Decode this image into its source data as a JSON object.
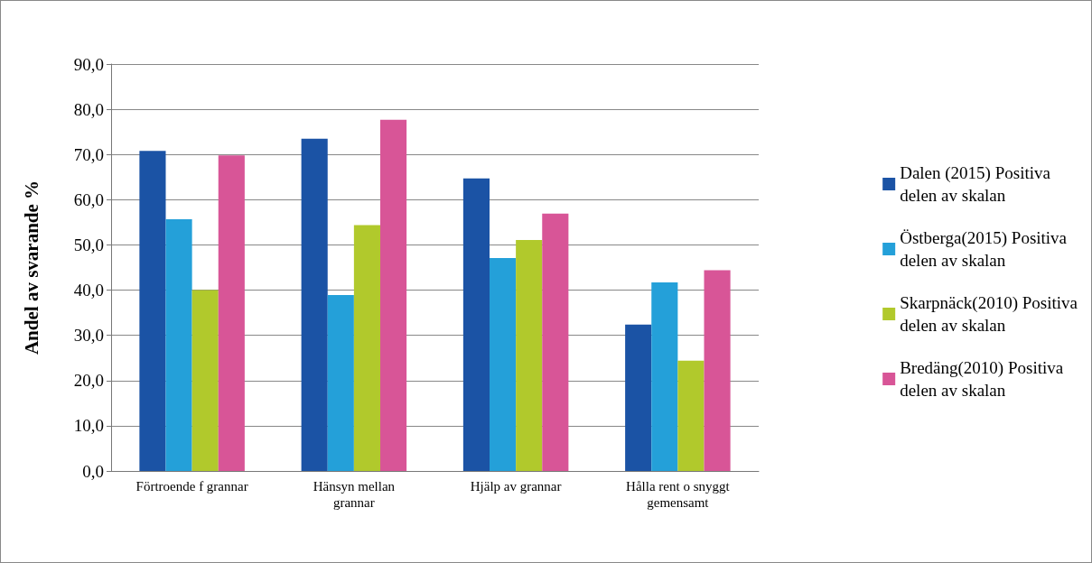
{
  "chart_data": {
    "type": "bar",
    "ylabel": "Andel av svarande %",
    "categories": [
      "Förtroende f grannar",
      "Hänsyn mellan grannar",
      "Hjälp av grannar",
      "Hålla rent o snyggt gemensamt"
    ],
    "series": [
      {
        "name": "Dalen (2015) Positiva delen av skalan",
        "color": "#1b53a5",
        "values": [
          70.8,
          73.5,
          64.7,
          32.4
        ]
      },
      {
        "name": "Östberga(2015) Positiva delen av skalan",
        "color": "#24a0d9",
        "values": [
          55.7,
          38.9,
          47.1,
          41.7
        ]
      },
      {
        "name": "Skarpnäck(2010) Positiva delen av skalan",
        "color": "#b1c92c",
        "values": [
          40.0,
          54.4,
          51.1,
          24.4
        ]
      },
      {
        "name": "Bredäng(2010) Positiva delen av skalan",
        "color": "#d85597",
        "values": [
          69.8,
          77.7,
          56.9,
          44.4
        ]
      }
    ],
    "ylim": [
      0,
      90
    ],
    "yticks": [
      {
        "value": 0,
        "label": "0,0"
      },
      {
        "value": 10,
        "label": "10,0"
      },
      {
        "value": 20,
        "label": "20,0"
      },
      {
        "value": 30,
        "label": "30,0"
      },
      {
        "value": 40,
        "label": "40,0"
      },
      {
        "value": 50,
        "label": "50,0"
      },
      {
        "value": 60,
        "label": "60,0"
      },
      {
        "value": 70,
        "label": "70,0"
      },
      {
        "value": 80,
        "label": "80,0"
      },
      {
        "value": 90,
        "label": "90,0"
      }
    ],
    "grid": "y",
    "legend": "right"
  }
}
